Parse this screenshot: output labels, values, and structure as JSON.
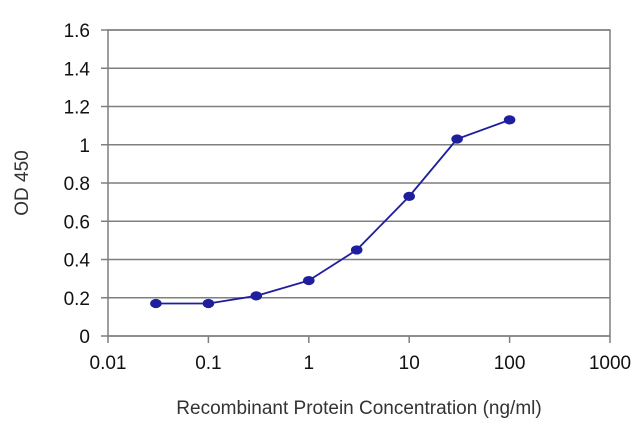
{
  "chart_data": {
    "type": "line",
    "title": "",
    "xlabel": "Recombinant Protein Concentration (ng/ml)",
    "ylabel": "OD 450",
    "x_scale": "log",
    "xlim": [
      0.01,
      1000
    ],
    "ylim": [
      0,
      1.6
    ],
    "x_ticks": [
      "0.01",
      "0.1",
      "1",
      "10",
      "100",
      "1000"
    ],
    "x_tick_values": [
      0.01,
      0.1,
      1,
      10,
      100,
      1000
    ],
    "y_ticks": [
      "0",
      "0.2",
      "0.4",
      "0.6",
      "0.8",
      "1",
      "1.2",
      "1.4",
      "1.6"
    ],
    "y_tick_values": [
      0,
      0.2,
      0.4,
      0.6,
      0.8,
      1,
      1.2,
      1.4,
      1.6
    ],
    "grid": "horizontal",
    "legend": "none",
    "series": [
      {
        "x": [
          0.03,
          0.1,
          0.3,
          1,
          3,
          10,
          30,
          100
        ],
        "y": [
          0.17,
          0.17,
          0.21,
          0.29,
          0.45,
          0.73,
          1.03,
          1.13
        ],
        "color": "#1f1f9e"
      }
    ],
    "colors": {
      "plot_background": "#ffffff",
      "grid": "#7f7f7f",
      "frame": "#7f7f7f",
      "line": "#1f1f9e",
      "marker": "#1f1f9e"
    }
  }
}
